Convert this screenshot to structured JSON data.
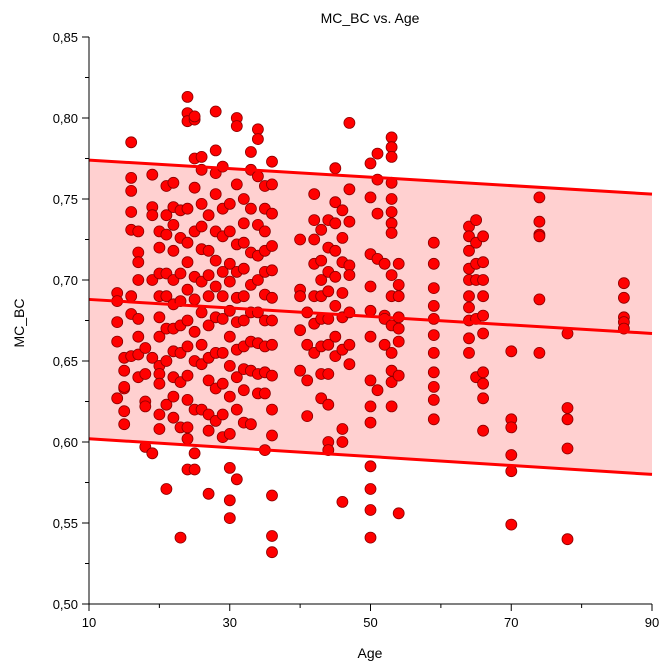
{
  "chart_data": {
    "type": "scatter",
    "title": "MC_BC vs. Age",
    "xlabel": "Age",
    "ylabel": "MC_BC",
    "xlim": [
      10,
      90
    ],
    "ylim": [
      0.5,
      0.85
    ],
    "xticks": [
      "10",
      "30",
      "50",
      "70",
      "90"
    ],
    "yticks": [
      "0,50",
      "0,55",
      "0,60",
      "0,65",
      "0,70",
      "0,75",
      "0,80",
      "0,85"
    ],
    "colors": {
      "point_fill": "#ff0000",
      "point_stroke": "#8b0000",
      "band_fill": "#ffd0d0",
      "line": "#ff0000"
    },
    "fit_line": {
      "x": [
        10,
        90
      ],
      "y": [
        0.688,
        0.667
      ]
    },
    "band_upper": {
      "x": [
        10,
        90
      ],
      "y": [
        0.774,
        0.753
      ]
    },
    "band_lower": {
      "x": [
        10,
        90
      ],
      "y": [
        0.602,
        0.58
      ]
    },
    "points": [
      [
        14,
        0.692
      ],
      [
        14,
        0.687
      ],
      [
        14,
        0.674
      ],
      [
        14,
        0.662
      ],
      [
        14,
        0.627
      ],
      [
        15,
        0.652
      ],
      [
        15,
        0.644
      ],
      [
        15,
        0.633
      ],
      [
        15,
        0.619
      ],
      [
        15,
        0.611
      ],
      [
        15,
        0.634
      ],
      [
        16,
        0.785
      ],
      [
        16,
        0.763
      ],
      [
        16,
        0.755
      ],
      [
        16,
        0.742
      ],
      [
        16,
        0.731
      ],
      [
        16,
        0.69
      ],
      [
        16,
        0.679
      ],
      [
        16,
        0.653
      ],
      [
        17,
        0.73
      ],
      [
        17,
        0.717
      ],
      [
        17,
        0.711
      ],
      [
        17,
        0.7
      ],
      [
        17,
        0.676
      ],
      [
        17,
        0.665
      ],
      [
        17,
        0.654
      ],
      [
        17,
        0.64
      ],
      [
        18,
        0.642
      ],
      [
        18,
        0.658
      ],
      [
        18,
        0.625
      ],
      [
        18,
        0.597
      ],
      [
        18,
        0.622
      ],
      [
        19,
        0.765
      ],
      [
        19,
        0.745
      ],
      [
        19,
        0.74
      ],
      [
        19,
        0.7
      ],
      [
        19,
        0.652
      ],
      [
        19,
        0.593
      ],
      [
        20,
        0.73
      ],
      [
        20,
        0.72
      ],
      [
        20,
        0.704
      ],
      [
        20,
        0.69
      ],
      [
        20,
        0.677
      ],
      [
        20,
        0.665
      ],
      [
        20,
        0.647
      ],
      [
        20,
        0.642
      ],
      [
        20,
        0.636
      ],
      [
        20,
        0.617
      ],
      [
        20,
        0.608
      ],
      [
        21,
        0.758
      ],
      [
        21,
        0.74
      ],
      [
        21,
        0.728
      ],
      [
        21,
        0.704
      ],
      [
        21,
        0.69
      ],
      [
        21,
        0.67
      ],
      [
        21,
        0.65
      ],
      [
        21,
        0.623
      ],
      [
        21,
        0.571
      ],
      [
        22,
        0.76
      ],
      [
        22,
        0.745
      ],
      [
        22,
        0.734
      ],
      [
        22,
        0.718
      ],
      [
        22,
        0.7
      ],
      [
        22,
        0.685
      ],
      [
        22,
        0.67
      ],
      [
        22,
        0.656
      ],
      [
        22,
        0.64
      ],
      [
        22,
        0.628
      ],
      [
        22,
        0.615
      ],
      [
        23,
        0.743
      ],
      [
        23,
        0.726
      ],
      [
        23,
        0.704
      ],
      [
        23,
        0.687
      ],
      [
        23,
        0.672
      ],
      [
        23,
        0.655
      ],
      [
        23,
        0.637
      ],
      [
        23,
        0.609
      ],
      [
        23,
        0.541
      ],
      [
        24,
        0.813
      ],
      [
        24,
        0.803
      ],
      [
        24,
        0.798
      ],
      [
        24,
        0.744
      ],
      [
        24,
        0.723
      ],
      [
        24,
        0.711
      ],
      [
        24,
        0.694
      ],
      [
        24,
        0.675
      ],
      [
        24,
        0.659
      ],
      [
        24,
        0.641
      ],
      [
        24,
        0.626
      ],
      [
        24,
        0.609
      ],
      [
        24,
        0.602
      ],
      [
        24,
        0.583
      ],
      [
        25,
        0.799
      ],
      [
        25,
        0.801
      ],
      [
        25,
        0.775
      ],
      [
        25,
        0.757
      ],
      [
        25,
        0.73
      ],
      [
        25,
        0.702
      ],
      [
        25,
        0.688
      ],
      [
        25,
        0.668
      ],
      [
        25,
        0.65
      ],
      [
        25,
        0.62
      ],
      [
        25,
        0.593
      ],
      [
        25,
        0.583
      ],
      [
        26,
        0.776
      ],
      [
        26,
        0.768
      ],
      [
        26,
        0.747
      ],
      [
        26,
        0.733
      ],
      [
        26,
        0.719
      ],
      [
        26,
        0.699
      ],
      [
        26,
        0.68
      ],
      [
        26,
        0.66
      ],
      [
        26,
        0.648
      ],
      [
        26,
        0.62
      ],
      [
        27,
        0.74
      ],
      [
        27,
        0.718
      ],
      [
        27,
        0.703
      ],
      [
        27,
        0.69
      ],
      [
        27,
        0.672
      ],
      [
        27,
        0.652
      ],
      [
        27,
        0.638
      ],
      [
        27,
        0.617
      ],
      [
        27,
        0.607
      ],
      [
        27,
        0.568
      ],
      [
        28,
        0.804
      ],
      [
        28,
        0.78
      ],
      [
        28,
        0.766
      ],
      [
        28,
        0.753
      ],
      [
        28,
        0.73
      ],
      [
        28,
        0.712
      ],
      [
        28,
        0.696
      ],
      [
        28,
        0.677
      ],
      [
        28,
        0.655
      ],
      [
        28,
        0.633
      ],
      [
        28,
        0.613
      ],
      [
        29,
        0.77
      ],
      [
        29,
        0.744
      ],
      [
        29,
        0.727
      ],
      [
        29,
        0.705
      ],
      [
        29,
        0.69
      ],
      [
        29,
        0.676
      ],
      [
        29,
        0.655
      ],
      [
        29,
        0.636
      ],
      [
        29,
        0.617
      ],
      [
        29,
        0.603
      ],
      [
        30,
        0.747
      ],
      [
        30,
        0.73
      ],
      [
        30,
        0.71
      ],
      [
        30,
        0.699
      ],
      [
        30,
        0.681
      ],
      [
        30,
        0.665
      ],
      [
        30,
        0.647
      ],
      [
        30,
        0.628
      ],
      [
        30,
        0.605
      ],
      [
        30,
        0.584
      ],
      [
        30,
        0.564
      ],
      [
        30,
        0.553
      ],
      [
        31,
        0.8
      ],
      [
        31,
        0.795
      ],
      [
        31,
        0.759
      ],
      [
        31,
        0.722
      ],
      [
        31,
        0.705
      ],
      [
        31,
        0.689
      ],
      [
        31,
        0.674
      ],
      [
        31,
        0.657
      ],
      [
        31,
        0.64
      ],
      [
        31,
        0.62
      ],
      [
        31,
        0.577
      ],
      [
        32,
        0.75
      ],
      [
        32,
        0.735
      ],
      [
        32,
        0.723
      ],
      [
        32,
        0.707
      ],
      [
        32,
        0.69
      ],
      [
        32,
        0.675
      ],
      [
        32,
        0.659
      ],
      [
        32,
        0.645
      ],
      [
        32,
        0.632
      ],
      [
        32,
        0.612
      ],
      [
        33,
        0.779
      ],
      [
        33,
        0.768
      ],
      [
        33,
        0.744
      ],
      [
        33,
        0.717
      ],
      [
        33,
        0.697
      ],
      [
        33,
        0.68
      ],
      [
        33,
        0.662
      ],
      [
        33,
        0.644
      ],
      [
        33,
        0.611
      ],
      [
        34,
        0.793
      ],
      [
        34,
        0.787
      ],
      [
        34,
        0.764
      ],
      [
        34,
        0.734
      ],
      [
        34,
        0.715
      ],
      [
        34,
        0.7
      ],
      [
        34,
        0.68
      ],
      [
        34,
        0.661
      ],
      [
        34,
        0.642
      ],
      [
        34,
        0.63
      ],
      [
        35,
        0.758
      ],
      [
        35,
        0.744
      ],
      [
        35,
        0.73
      ],
      [
        35,
        0.718
      ],
      [
        35,
        0.705
      ],
      [
        35,
        0.691
      ],
      [
        35,
        0.675
      ],
      [
        35,
        0.659
      ],
      [
        35,
        0.643
      ],
      [
        35,
        0.63
      ],
      [
        35,
        0.595
      ],
      [
        36,
        0.773
      ],
      [
        36,
        0.759
      ],
      [
        36,
        0.741
      ],
      [
        36,
        0.721
      ],
      [
        36,
        0.706
      ],
      [
        36,
        0.689
      ],
      [
        36,
        0.675
      ],
      [
        36,
        0.66
      ],
      [
        36,
        0.641
      ],
      [
        36,
        0.62
      ],
      [
        36,
        0.604
      ],
      [
        36,
        0.567
      ],
      [
        36,
        0.542
      ],
      [
        36,
        0.532
      ],
      [
        40,
        0.725
      ],
      [
        40,
        0.694
      ],
      [
        40,
        0.69
      ],
      [
        40,
        0.669
      ],
      [
        40,
        0.644
      ],
      [
        41,
        0.68
      ],
      [
        41,
        0.66
      ],
      [
        41,
        0.638
      ],
      [
        41,
        0.616
      ],
      [
        42,
        0.753
      ],
      [
        42,
        0.737
      ],
      [
        42,
        0.725
      ],
      [
        42,
        0.71
      ],
      [
        42,
        0.69
      ],
      [
        42,
        0.673
      ],
      [
        42,
        0.655
      ],
      [
        43,
        0.731
      ],
      [
        43,
        0.712
      ],
      [
        43,
        0.7
      ],
      [
        43,
        0.69
      ],
      [
        43,
        0.676
      ],
      [
        43,
        0.659
      ],
      [
        43,
        0.642
      ],
      [
        43,
        0.627
      ],
      [
        44,
        0.737
      ],
      [
        44,
        0.72
      ],
      [
        44,
        0.705
      ],
      [
        44,
        0.693
      ],
      [
        44,
        0.676
      ],
      [
        44,
        0.66
      ],
      [
        44,
        0.642
      ],
      [
        44,
        0.623
      ],
      [
        44,
        0.6
      ],
      [
        44,
        0.595
      ],
      [
        45,
        0.769
      ],
      [
        45,
        0.748
      ],
      [
        45,
        0.735
      ],
      [
        45,
        0.718
      ],
      [
        45,
        0.702
      ],
      [
        45,
        0.684
      ],
      [
        45,
        0.665
      ],
      [
        45,
        0.653
      ],
      [
        46,
        0.743
      ],
      [
        46,
        0.726
      ],
      [
        46,
        0.711
      ],
      [
        46,
        0.692
      ],
      [
        46,
        0.677
      ],
      [
        46,
        0.657
      ],
      [
        46,
        0.608
      ],
      [
        46,
        0.6
      ],
      [
        46,
        0.563
      ],
      [
        47,
        0.797
      ],
      [
        47,
        0.756
      ],
      [
        47,
        0.736
      ],
      [
        47,
        0.709
      ],
      [
        47,
        0.703
      ],
      [
        47,
        0.68
      ],
      [
        47,
        0.66
      ],
      [
        47,
        0.648
      ],
      [
        50,
        0.772
      ],
      [
        50,
        0.751
      ],
      [
        50,
        0.716
      ],
      [
        50,
        0.696
      ],
      [
        50,
        0.681
      ],
      [
        50,
        0.665
      ],
      [
        50,
        0.638
      ],
      [
        50,
        0.622
      ],
      [
        50,
        0.612
      ],
      [
        50,
        0.585
      ],
      [
        50,
        0.571
      ],
      [
        50,
        0.558
      ],
      [
        50,
        0.541
      ],
      [
        51,
        0.778
      ],
      [
        51,
        0.762
      ],
      [
        51,
        0.741
      ],
      [
        51,
        0.713
      ],
      [
        51,
        0.632
      ],
      [
        52,
        0.71
      ],
      [
        52,
        0.678
      ],
      [
        52,
        0.676
      ],
      [
        52,
        0.66
      ],
      [
        53,
        0.788
      ],
      [
        53,
        0.782
      ],
      [
        53,
        0.776
      ],
      [
        53,
        0.76
      ],
      [
        53,
        0.75
      ],
      [
        53,
        0.742
      ],
      [
        53,
        0.735
      ],
      [
        53,
        0.729
      ],
      [
        53,
        0.703
      ],
      [
        53,
        0.69
      ],
      [
        53,
        0.672
      ],
      [
        53,
        0.655
      ],
      [
        53,
        0.644
      ],
      [
        53,
        0.637
      ],
      [
        53,
        0.622
      ],
      [
        54,
        0.71
      ],
      [
        54,
        0.697
      ],
      [
        54,
        0.69
      ],
      [
        54,
        0.677
      ],
      [
        54,
        0.67
      ],
      [
        54,
        0.662
      ],
      [
        54,
        0.641
      ],
      [
        54,
        0.556
      ],
      [
        59,
        0.723
      ],
      [
        59,
        0.71
      ],
      [
        59,
        0.695
      ],
      [
        59,
        0.684
      ],
      [
        59,
        0.676
      ],
      [
        59,
        0.666
      ],
      [
        59,
        0.655
      ],
      [
        59,
        0.643
      ],
      [
        59,
        0.634
      ],
      [
        59,
        0.626
      ],
      [
        59,
        0.614
      ],
      [
        64,
        0.733
      ],
      [
        64,
        0.727
      ],
      [
        64,
        0.718
      ],
      [
        64,
        0.707
      ],
      [
        64,
        0.7
      ],
      [
        64,
        0.69
      ],
      [
        64,
        0.683
      ],
      [
        64,
        0.675
      ],
      [
        64,
        0.664
      ],
      [
        64,
        0.655
      ],
      [
        65,
        0.737
      ],
      [
        65,
        0.723
      ],
      [
        65,
        0.71
      ],
      [
        65,
        0.7
      ],
      [
        65,
        0.676
      ],
      [
        65,
        0.64
      ],
      [
        66,
        0.727
      ],
      [
        66,
        0.711
      ],
      [
        66,
        0.7
      ],
      [
        66,
        0.69
      ],
      [
        66,
        0.678
      ],
      [
        66,
        0.667
      ],
      [
        66,
        0.643
      ],
      [
        66,
        0.636
      ],
      [
        66,
        0.627
      ],
      [
        66,
        0.607
      ],
      [
        70,
        0.656
      ],
      [
        70,
        0.614
      ],
      [
        70,
        0.609
      ],
      [
        70,
        0.592
      ],
      [
        70,
        0.582
      ],
      [
        70,
        0.549
      ],
      [
        74,
        0.751
      ],
      [
        74,
        0.736
      ],
      [
        74,
        0.728
      ],
      [
        74,
        0.727
      ],
      [
        74,
        0.688
      ],
      [
        74,
        0.655
      ],
      [
        78,
        0.667
      ],
      [
        78,
        0.621
      ],
      [
        78,
        0.614
      ],
      [
        78,
        0.596
      ],
      [
        78,
        0.54
      ],
      [
        86,
        0.698
      ],
      [
        86,
        0.689
      ],
      [
        86,
        0.677
      ],
      [
        86,
        0.674
      ],
      [
        86,
        0.67
      ]
    ]
  }
}
